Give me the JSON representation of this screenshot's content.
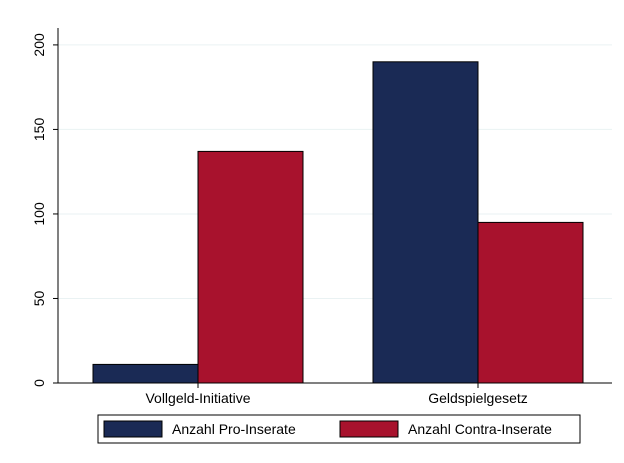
{
  "chart_data": {
    "type": "bar",
    "categories": [
      "Vollgeld-Initiative",
      "Geldspielgesetz"
    ],
    "series": [
      {
        "name": "Anzahl Pro-Inserate",
        "values": [
          11,
          190
        ],
        "color": "#1a2a55"
      },
      {
        "name": "Anzahl Contra-Inserate",
        "values": [
          137,
          95
        ],
        "color": "#a8122d"
      }
    ],
    "yticks": [
      0,
      50,
      100,
      150,
      200
    ],
    "ylim": [
      0,
      210
    ],
    "grid": true,
    "legend_position": "bottom",
    "title": "",
    "xlabel": "",
    "ylabel": ""
  }
}
